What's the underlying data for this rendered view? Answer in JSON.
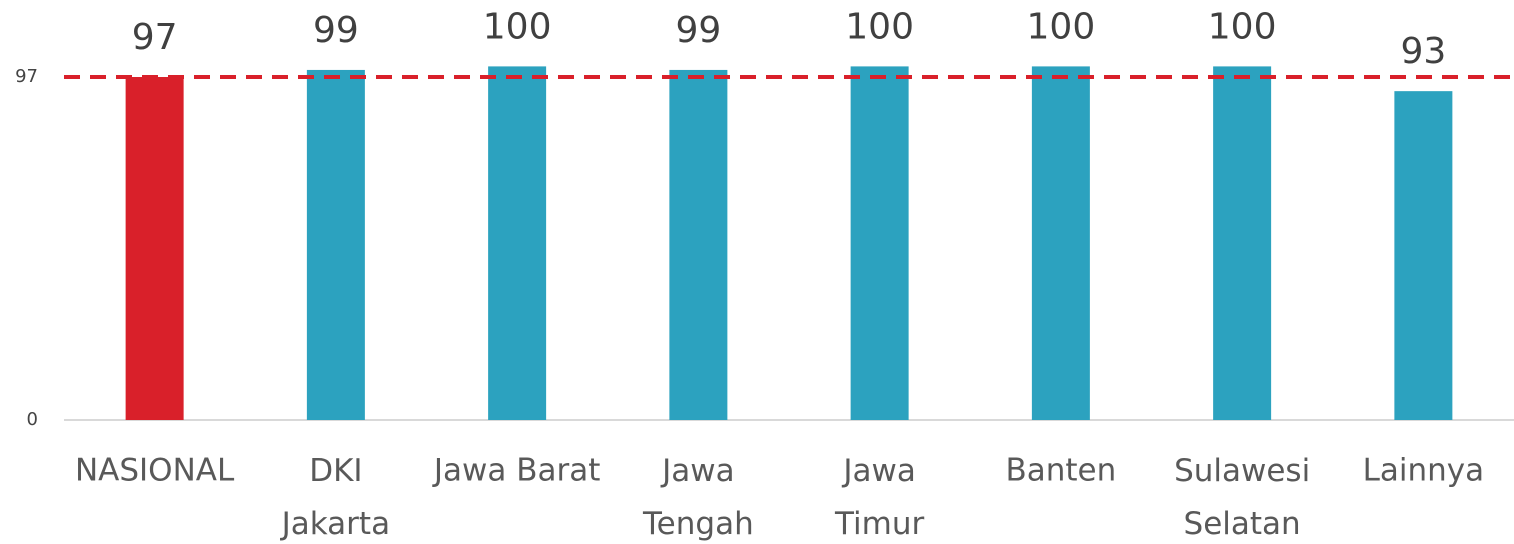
{
  "chart_data": {
    "type": "bar",
    "categories": [
      "NASIONAL",
      "DKI\nJakarta",
      "Jawa Barat",
      "Jawa\nTengah",
      "Jawa\nTimur",
      "Banten",
      "Sulawesi\nSelatan",
      "Lainnya"
    ],
    "values": [
      97,
      99,
      100,
      99,
      100,
      100,
      100,
      93
    ],
    "colors": [
      "#d9202a",
      "#2ca2bf",
      "#2ca2bf",
      "#2ca2bf",
      "#2ca2bf",
      "#2ca2bf",
      "#2ca2bf",
      "#2ca2bf"
    ],
    "ylim": [
      0,
      100
    ],
    "yticks": [
      0,
      97
    ],
    "reference_line": {
      "value": 97,
      "color": "#d9202a"
    }
  }
}
